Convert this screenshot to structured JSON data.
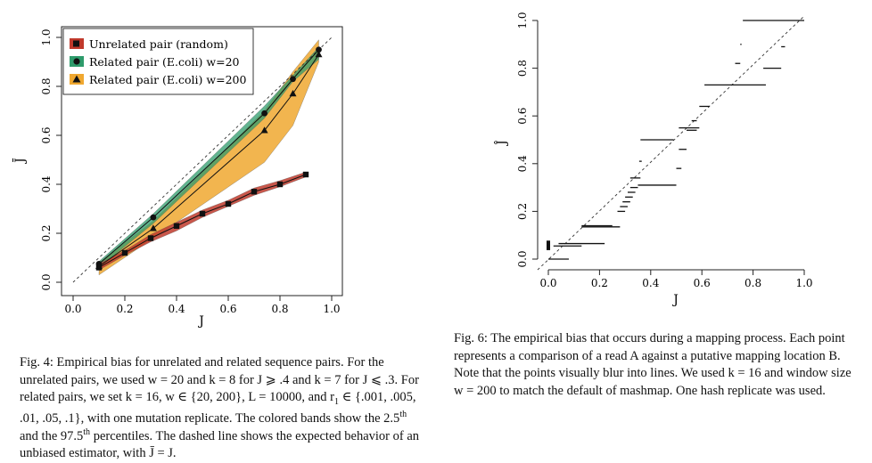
{
  "figure4": {
    "y_axis_label": "J̄",
    "x_axis_label": "J",
    "x_ticks": [
      "0.0",
      "0.2",
      "0.4",
      "0.6",
      "0.8",
      "1.0"
    ],
    "y_ticks": [
      "0.0",
      "0.2",
      "0.4",
      "0.6",
      "0.8",
      "1.0"
    ],
    "legend": [
      {
        "label": "Unrelated pair (random)",
        "marker": "square",
        "fill": "#c0392b"
      },
      {
        "label": "Related pair (E.coli) w=20",
        "marker": "circle",
        "fill": "#2e9b6b"
      },
      {
        "label": "Related pair (E.coli) w=200",
        "marker": "triangle",
        "fill": "#f0a830"
      }
    ],
    "caption": {
      "prefix": "Fig. 4: Empirical bias for unrelated and related sequence pairs. For the unrelated pairs, we used ",
      "p1": "w = 20 and k = 8 for J ⩾ .4 and k = 7 for J ⩽ .3. For related pairs, we set k = 16, w ∈ {20, 200}, L = 10000, and r",
      "p1_sub": "1",
      "p2": " ∈ {.001, .005, .01, .05, .1}, with one mutation replicate. The colored bands show the 2.5",
      "sup1": "th",
      "p3": " and the 97.5",
      "sup2": "th",
      "p4": " percentiles. The dashed line shows the expected behavior of an unbiased estimator, with J̄ = J."
    }
  },
  "figure6": {
    "y_axis_label": "Ĵ",
    "x_axis_label": "J",
    "x_ticks": [
      "0.0",
      "0.2",
      "0.4",
      "0.6",
      "0.8",
      "1.0"
    ],
    "y_ticks": [
      "0.0",
      "0.2",
      "0.4",
      "0.6",
      "0.8",
      "1.0"
    ],
    "caption": "Fig. 6: The empirical bias that occurs during a mapping process. Each point represents a comparison of a read A against a putative mapping location B. Note that the points visually blur into lines. We used k = 16 and window size w = 200 to match the default of mashmap. One hash replicate was used."
  },
  "chart_data": [
    {
      "type": "line",
      "xlabel": "J",
      "ylabel": "J̄",
      "xlim": [
        0,
        1
      ],
      "ylim": [
        0,
        1
      ],
      "reference_line": "y = x (dashed)",
      "legend_position": "top-left",
      "series": [
        {
          "name": "Unrelated pair (random)",
          "marker": "square",
          "x": [
            0.1,
            0.2,
            0.3,
            0.4,
            0.5,
            0.6,
            0.7,
            0.8,
            0.9
          ],
          "y": [
            0.06,
            0.12,
            0.18,
            0.23,
            0.28,
            0.32,
            0.37,
            0.4,
            0.44
          ],
          "band_low": [
            0.05,
            0.11,
            0.165,
            0.21,
            0.265,
            0.31,
            0.355,
            0.39,
            0.43
          ],
          "band_high": [
            0.075,
            0.13,
            0.195,
            0.245,
            0.295,
            0.335,
            0.385,
            0.415,
            0.45
          ]
        },
        {
          "name": "Related pair (E.coli) w=20",
          "marker": "circle",
          "x": [
            0.1,
            0.31,
            0.74,
            0.85,
            0.95
          ],
          "y": [
            0.075,
            0.265,
            0.69,
            0.83,
            0.95
          ],
          "band_low": [
            0.06,
            0.24,
            0.67,
            0.82,
            0.91
          ],
          "band_high": [
            0.085,
            0.28,
            0.72,
            0.845,
            0.96
          ]
        },
        {
          "name": "Related pair (E.coli) w=200",
          "marker": "triangle",
          "x": [
            0.1,
            0.31,
            0.74,
            0.85,
            0.95
          ],
          "y": [
            0.065,
            0.22,
            0.62,
            0.77,
            0.93
          ],
          "band_low": [
            0.03,
            0.18,
            0.49,
            0.64,
            0.9
          ],
          "band_high": [
            0.08,
            0.25,
            0.7,
            0.86,
            0.99
          ]
        }
      ]
    },
    {
      "type": "scatter",
      "xlabel": "J",
      "ylabel": "Ĵ",
      "xlim": [
        0,
        1
      ],
      "ylim": [
        0,
        1
      ],
      "reference_line": "y = x (dashed)",
      "segments": [
        {
          "x0": 0.0,
          "x1": 0.08,
          "y": 0.0
        },
        {
          "x0": 0.02,
          "x1": 0.13,
          "y": 0.055
        },
        {
          "x0": 0.04,
          "x1": 0.22,
          "y": 0.065
        },
        {
          "x0": 0.13,
          "x1": 0.28,
          "y": 0.135
        },
        {
          "x0": 0.13,
          "x1": 0.25,
          "y": 0.14
        },
        {
          "x0": 0.27,
          "x1": 0.3,
          "y": 0.2
        },
        {
          "x0": 0.28,
          "x1": 0.31,
          "y": 0.22
        },
        {
          "x0": 0.29,
          "x1": 0.32,
          "y": 0.24
        },
        {
          "x0": 0.3,
          "x1": 0.33,
          "y": 0.26
        },
        {
          "x0": 0.31,
          "x1": 0.34,
          "y": 0.28
        },
        {
          "x0": 0.32,
          "x1": 0.35,
          "y": 0.3
        },
        {
          "x0": 0.35,
          "x1": 0.5,
          "y": 0.31
        },
        {
          "x0": 0.32,
          "x1": 0.36,
          "y": 0.34
        },
        {
          "x0": 0.355,
          "x1": 0.365,
          "y": 0.41
        },
        {
          "x0": 0.36,
          "x1": 0.49,
          "y": 0.5
        },
        {
          "x0": 0.5,
          "x1": 0.52,
          "y": 0.38
        },
        {
          "x0": 0.51,
          "x1": 0.54,
          "y": 0.46
        },
        {
          "x0": 0.51,
          "x1": 0.59,
          "y": 0.55
        },
        {
          "x0": 0.54,
          "x1": 0.58,
          "y": 0.54
        },
        {
          "x0": 0.56,
          "x1": 0.58,
          "y": 0.58
        },
        {
          "x0": 0.59,
          "x1": 0.63,
          "y": 0.64
        },
        {
          "x0": 0.61,
          "x1": 0.85,
          "y": 0.73
        },
        {
          "x0": 0.73,
          "x1": 0.75,
          "y": 0.82
        },
        {
          "x0": 0.75,
          "x1": 0.755,
          "y": 0.9
        },
        {
          "x0": 0.84,
          "x1": 0.91,
          "y": 0.8
        },
        {
          "x0": 0.91,
          "x1": 0.925,
          "y": 0.89
        },
        {
          "x0": 0.76,
          "x1": 1.0,
          "y": 1.0
        }
      ],
      "points": [
        {
          "x": 0.0,
          "y": 0.045
        },
        {
          "x": 0.0,
          "y": 0.055
        },
        {
          "x": 0.0,
          "y": 0.065
        },
        {
          "x": 0.0,
          "y": 0.07
        }
      ]
    }
  ]
}
